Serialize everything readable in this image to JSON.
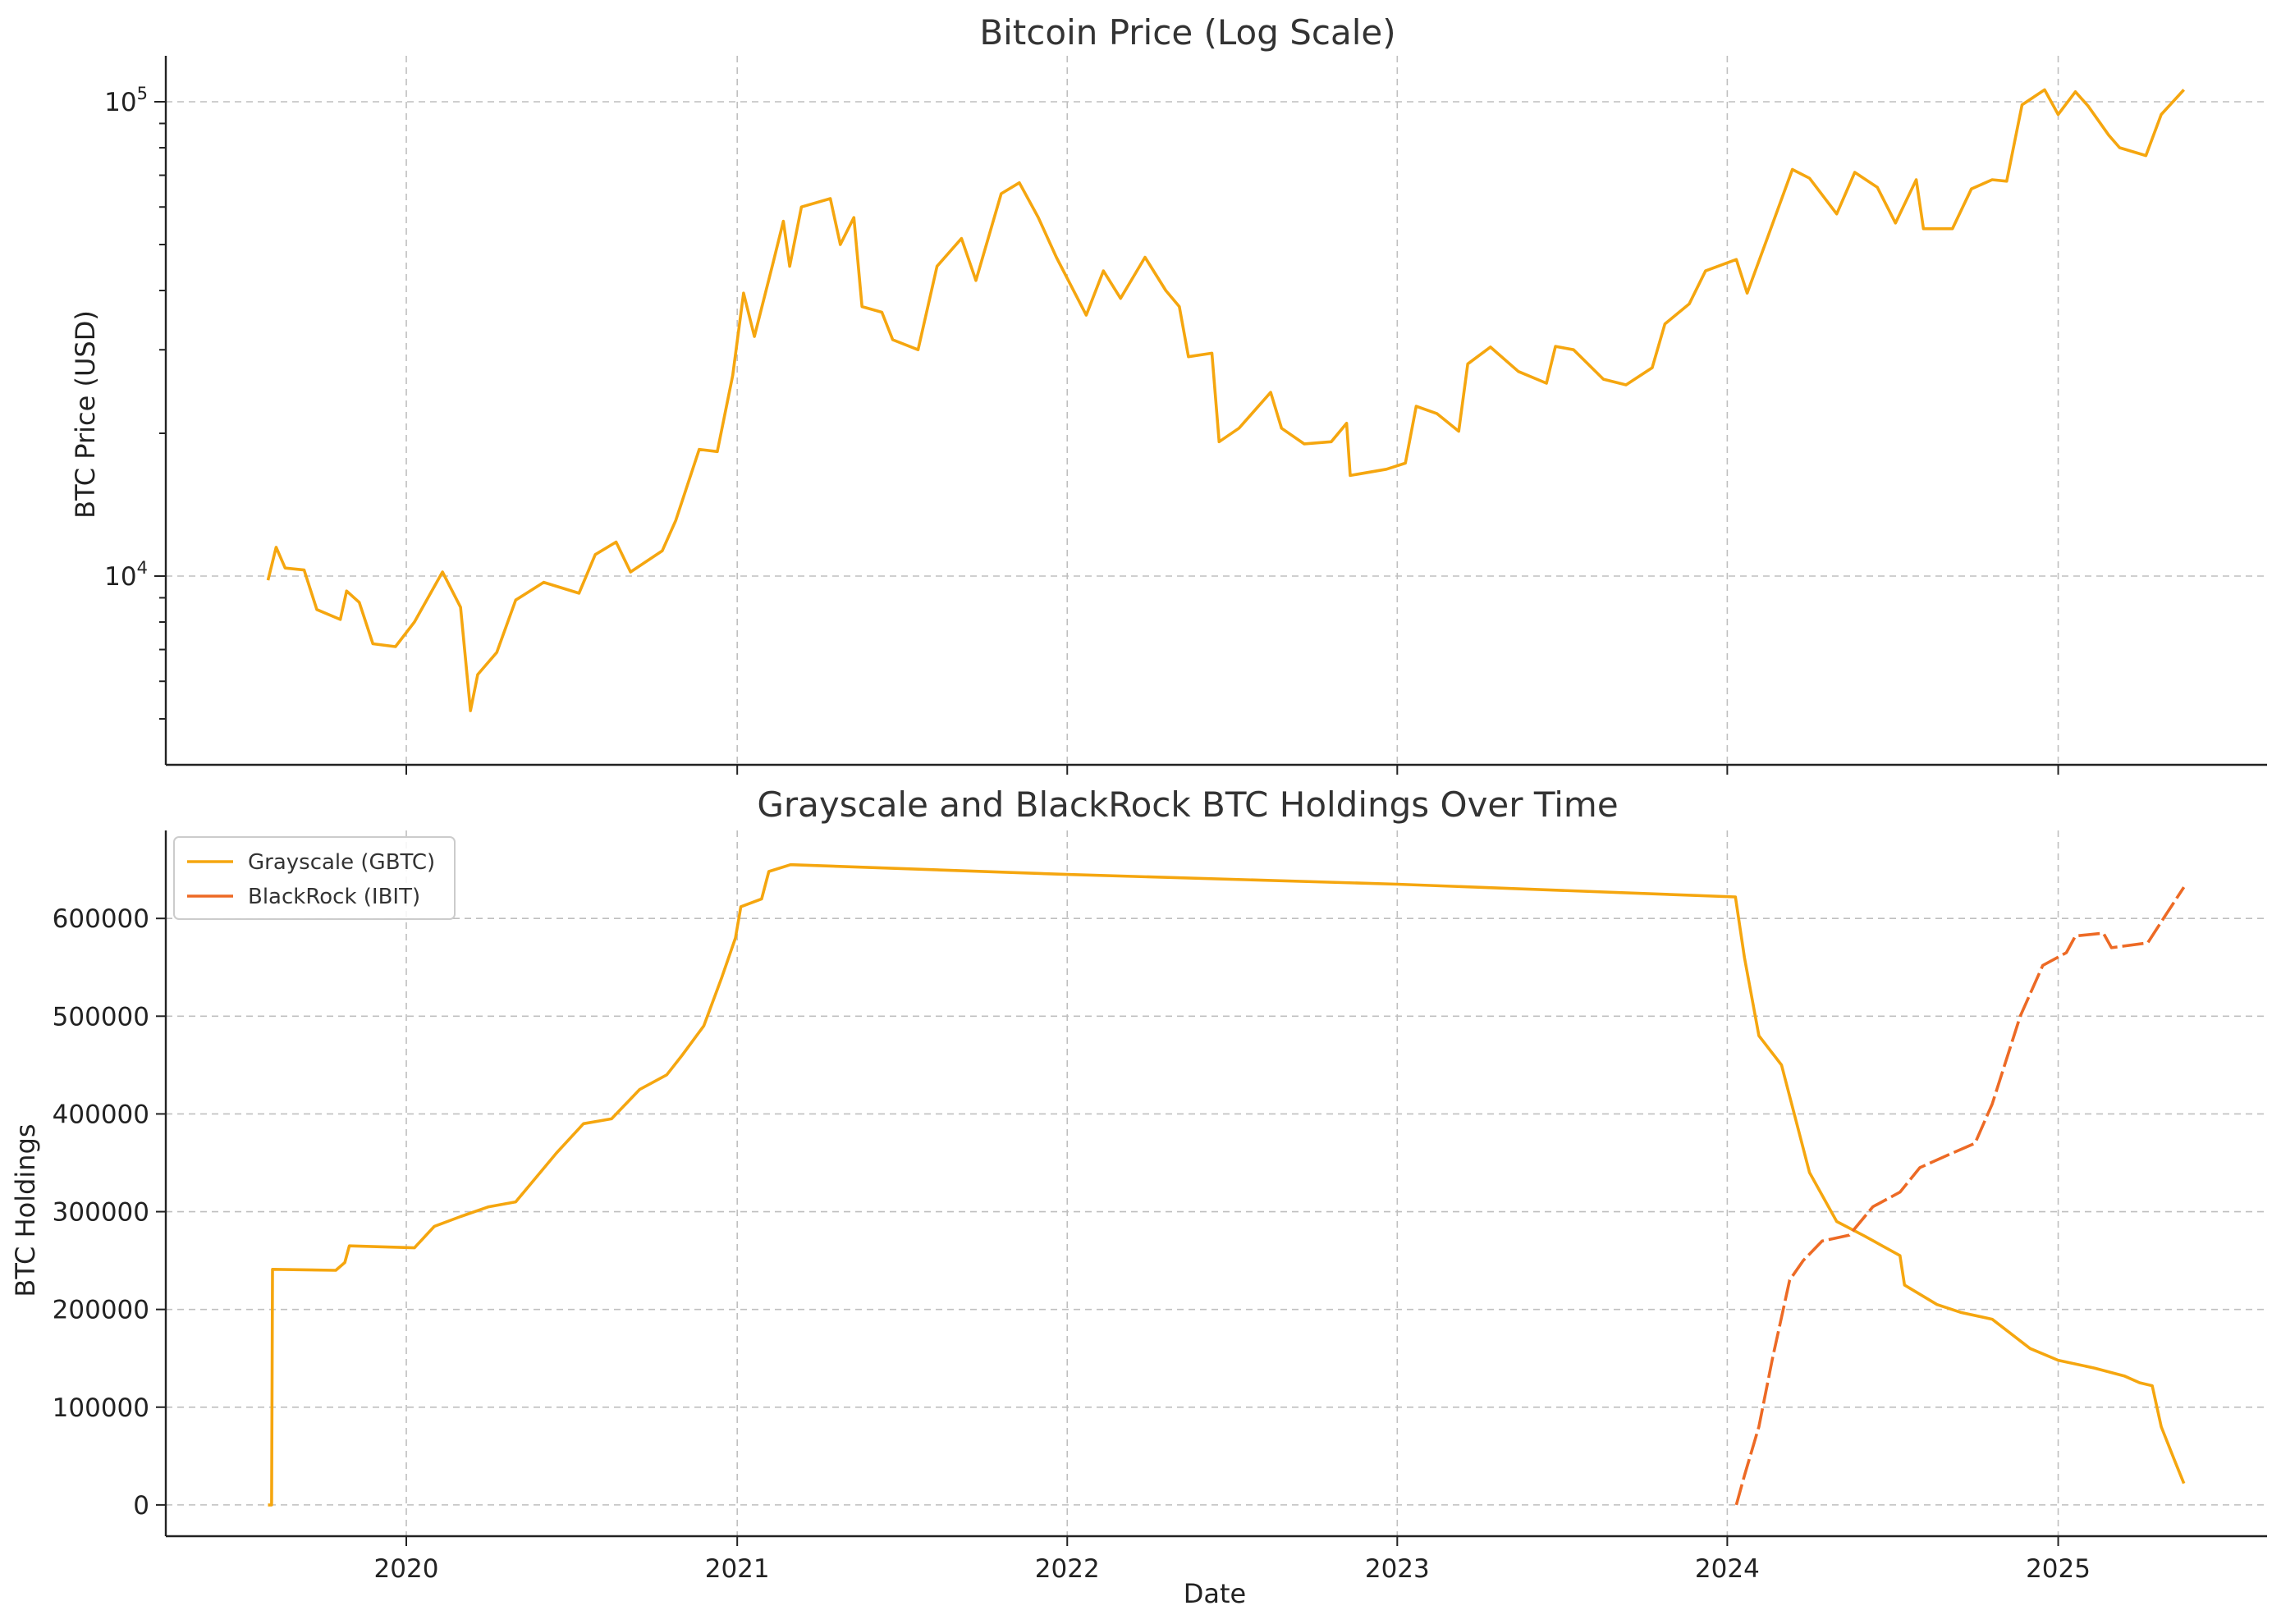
{
  "chart_data": [
    {
      "type": "line",
      "title": "Bitcoin Price (Log Scale)",
      "xlabel": "",
      "ylabel": "BTC Price (USD)",
      "yscale": "log",
      "ylim": [
        4000,
        125000
      ],
      "xlim": [
        "2019-04-10",
        "2025-08-20"
      ],
      "grid": true,
      "y_ticks": [
        {
          "value": 10000,
          "base": "10",
          "exp": "4"
        },
        {
          "value": 100000,
          "base": "10",
          "exp": "5"
        }
      ],
      "series": [
        {
          "color": "#f5a60f",
          "points": [
            [
              "2019-08-01",
              9800
            ],
            [
              "2019-08-10",
              11500
            ],
            [
              "2019-08-20",
              10400
            ],
            [
              "2019-09-10",
              10300
            ],
            [
              "2019-09-24",
              8500
            ],
            [
              "2019-10-20",
              8100
            ],
            [
              "2019-10-27",
              9300
            ],
            [
              "2019-11-10",
              8800
            ],
            [
              "2019-11-25",
              7200
            ],
            [
              "2019-12-20",
              7100
            ],
            [
              "2020-01-10",
              8000
            ],
            [
              "2020-02-10",
              10200
            ],
            [
              "2020-03-01",
              8600
            ],
            [
              "2020-03-12",
              5200
            ],
            [
              "2020-03-20",
              6200
            ],
            [
              "2020-04-10",
              6900
            ],
            [
              "2020-05-01",
              8900
            ],
            [
              "2020-06-01",
              9700
            ],
            [
              "2020-07-10",
              9200
            ],
            [
              "2020-07-28",
              11100
            ],
            [
              "2020-08-20",
              11800
            ],
            [
              "2020-09-05",
              10200
            ],
            [
              "2020-10-10",
              11300
            ],
            [
              "2020-10-25",
              13100
            ],
            [
              "2020-11-20",
              18500
            ],
            [
              "2020-12-10",
              18300
            ],
            [
              "2020-12-27",
              26500
            ],
            [
              "2021-01-08",
              39500
            ],
            [
              "2021-01-20",
              32000
            ],
            [
              "2021-02-10",
              46000
            ],
            [
              "2021-02-21",
              56000
            ],
            [
              "2021-02-28",
              45000
            ],
            [
              "2021-03-13",
              60000
            ],
            [
              "2021-04-14",
              62500
            ],
            [
              "2021-04-25",
              50000
            ],
            [
              "2021-05-10",
              57000
            ],
            [
              "2021-05-19",
              37000
            ],
            [
              "2021-06-10",
              36000
            ],
            [
              "2021-06-22",
              31500
            ],
            [
              "2021-07-20",
              30000
            ],
            [
              "2021-08-10",
              45000
            ],
            [
              "2021-09-06",
              51500
            ],
            [
              "2021-09-22",
              42000
            ],
            [
              "2021-10-20",
              64000
            ],
            [
              "2021-11-09",
              67500
            ],
            [
              "2021-11-30",
              57000
            ],
            [
              "2021-12-20",
              47000
            ],
            [
              "2022-01-22",
              35500
            ],
            [
              "2022-02-10",
              44000
            ],
            [
              "2022-03-01",
              38500
            ],
            [
              "2022-03-28",
              47000
            ],
            [
              "2022-04-20",
              40000
            ],
            [
              "2022-05-05",
              37000
            ],
            [
              "2022-05-15",
              29000
            ],
            [
              "2022-06-10",
              29500
            ],
            [
              "2022-06-18",
              19200
            ],
            [
              "2022-07-10",
              20500
            ],
            [
              "2022-08-14",
              24400
            ],
            [
              "2022-08-26",
              20500
            ],
            [
              "2022-09-20",
              19000
            ],
            [
              "2022-10-20",
              19200
            ],
            [
              "2022-11-06",
              21000
            ],
            [
              "2022-11-10",
              16300
            ],
            [
              "2022-12-20",
              16800
            ],
            [
              "2023-01-10",
              17300
            ],
            [
              "2023-01-22",
              22800
            ],
            [
              "2023-02-14",
              22000
            ],
            [
              "2023-03-10",
              20200
            ],
            [
              "2023-03-20",
              28000
            ],
            [
              "2023-04-14",
              30400
            ],
            [
              "2023-05-15",
              27000
            ],
            [
              "2023-06-15",
              25500
            ],
            [
              "2023-06-25",
              30500
            ],
            [
              "2023-07-15",
              30000
            ],
            [
              "2023-08-17",
              26000
            ],
            [
              "2023-09-11",
              25300
            ],
            [
              "2023-10-10",
              27500
            ],
            [
              "2023-10-24",
              34000
            ],
            [
              "2023-11-20",
              37500
            ],
            [
              "2023-12-08",
              44000
            ],
            [
              "2024-01-11",
              46500
            ],
            [
              "2024-01-23",
              39500
            ],
            [
              "2024-02-15",
              52000
            ],
            [
              "2024-03-13",
              72000
            ],
            [
              "2024-04-01",
              69000
            ],
            [
              "2024-05-01",
              58000
            ],
            [
              "2024-05-21",
              71000
            ],
            [
              "2024-06-15",
              66000
            ],
            [
              "2024-07-05",
              55500
            ],
            [
              "2024-07-28",
              68500
            ],
            [
              "2024-08-05",
              54000
            ],
            [
              "2024-09-06",
              54000
            ],
            [
              "2024-09-27",
              65500
            ],
            [
              "2024-10-20",
              68500
            ],
            [
              "2024-11-05",
              68000
            ],
            [
              "2024-11-22",
              98500
            ],
            [
              "2024-12-17",
              106000
            ],
            [
              "2025-01-01",
              94000
            ],
            [
              "2025-01-20",
              105000
            ],
            [
              "2025-02-03",
              98000
            ],
            [
              "2025-02-26",
              85000
            ],
            [
              "2025-03-10",
              80000
            ],
            [
              "2025-04-08",
              77000
            ],
            [
              "2025-04-25",
              94000
            ],
            [
              "2025-05-20",
              106000
            ]
          ]
        }
      ]
    },
    {
      "type": "line",
      "title": "Grayscale and BlackRock BTC Holdings Over Time",
      "xlabel": "Date",
      "ylabel": "BTC Holdings",
      "ylim": [
        -32000,
        690000
      ],
      "xlim": [
        "2019-04-10",
        "2025-08-20"
      ],
      "grid": true,
      "legend": "top-left",
      "x_ticks": [
        {
          "label": "2020",
          "date": "2020-01-01"
        },
        {
          "label": "2021",
          "date": "2021-01-01"
        },
        {
          "label": "2022",
          "date": "2022-01-01"
        },
        {
          "label": "2023",
          "date": "2023-01-01"
        },
        {
          "label": "2024",
          "date": "2024-01-01"
        },
        {
          "label": "2025",
          "date": "2025-01-01"
        }
      ],
      "y_ticks": [
        {
          "label": "0",
          "value": 0
        },
        {
          "label": "100000",
          "value": 100000
        },
        {
          "label": "200000",
          "value": 200000
        },
        {
          "label": "300000",
          "value": 300000
        },
        {
          "label": "400000",
          "value": 400000
        },
        {
          "label": "500000",
          "value": 500000
        },
        {
          "label": "600000",
          "value": 600000
        }
      ],
      "series": [
        {
          "name": "Grayscale (GBTC)",
          "color": "#f5a60f",
          "points": [
            [
              "2019-08-01",
              0
            ],
            [
              "2019-08-05",
              0
            ],
            [
              "2019-08-06",
              241000
            ],
            [
              "2019-10-15",
              240000
            ],
            [
              "2019-10-25",
              248000
            ],
            [
              "2019-10-30",
              265000
            ],
            [
              "2020-01-10",
              263000
            ],
            [
              "2020-02-01",
              285000
            ],
            [
              "2020-03-01",
              295000
            ],
            [
              "2020-04-01",
              305000
            ],
            [
              "2020-05-01",
              310000
            ],
            [
              "2020-06-15",
              360000
            ],
            [
              "2020-07-15",
              390000
            ],
            [
              "2020-08-15",
              395000
            ],
            [
              "2020-09-15",
              425000
            ],
            [
              "2020-10-15",
              440000
            ],
            [
              "2020-11-01",
              460000
            ],
            [
              "2020-11-25",
              490000
            ],
            [
              "2020-12-15",
              540000
            ],
            [
              "2020-12-30",
              580000
            ],
            [
              "2021-01-05",
              612000
            ],
            [
              "2021-01-28",
              620000
            ],
            [
              "2021-02-05",
              648000
            ],
            [
              "2021-03-01",
              655000
            ],
            [
              "2022-01-01",
              645000
            ],
            [
              "2023-01-01",
              635000
            ],
            [
              "2024-01-10",
              622000
            ],
            [
              "2024-01-20",
              560000
            ],
            [
              "2024-02-05",
              480000
            ],
            [
              "2024-03-01",
              450000
            ],
            [
              "2024-04-01",
              340000
            ],
            [
              "2024-05-01",
              290000
            ],
            [
              "2024-06-01",
              275000
            ],
            [
              "2024-07-10",
              255000
            ],
            [
              "2024-07-15",
              225000
            ],
            [
              "2024-08-20",
              205000
            ],
            [
              "2024-09-15",
              197000
            ],
            [
              "2024-10-20",
              190000
            ],
            [
              "2024-12-01",
              160000
            ],
            [
              "2025-01-01",
              148000
            ],
            [
              "2025-02-10",
              140000
            ],
            [
              "2025-03-15",
              132000
            ],
            [
              "2025-04-01",
              125000
            ],
            [
              "2025-04-15",
              122000
            ],
            [
              "2025-04-25",
              80000
            ],
            [
              "2025-05-10",
              45000
            ],
            [
              "2025-05-20",
              22000
            ]
          ]
        },
        {
          "name": "BlackRock (IBIT)",
          "color": "#ed6a25",
          "points": [
            [
              "2024-01-11",
              0
            ],
            [
              "2024-01-20",
              30000
            ],
            [
              "2024-02-05",
              80000
            ],
            [
              "2024-02-20",
              150000
            ],
            [
              "2024-03-10",
              230000
            ],
            [
              "2024-03-25",
              250000
            ],
            [
              "2024-04-15",
              270000
            ],
            [
              "2024-05-15",
              276000
            ],
            [
              "2024-06-10",
              305000
            ],
            [
              "2024-07-10",
              320000
            ],
            [
              "2024-08-01",
              345000
            ],
            [
              "2024-09-01",
              358000
            ],
            [
              "2024-10-01",
              370000
            ],
            [
              "2024-10-20",
              410000
            ],
            [
              "2024-11-20",
              500000
            ],
            [
              "2024-12-15",
              552000
            ],
            [
              "2025-01-10",
              565000
            ],
            [
              "2025-01-20",
              582000
            ],
            [
              "2025-02-20",
              585000
            ],
            [
              "2025-03-01",
              570000
            ],
            [
              "2025-04-10",
              575000
            ],
            [
              "2025-05-01",
              605000
            ],
            [
              "2025-05-20",
              632000
            ]
          ]
        }
      ]
    }
  ]
}
